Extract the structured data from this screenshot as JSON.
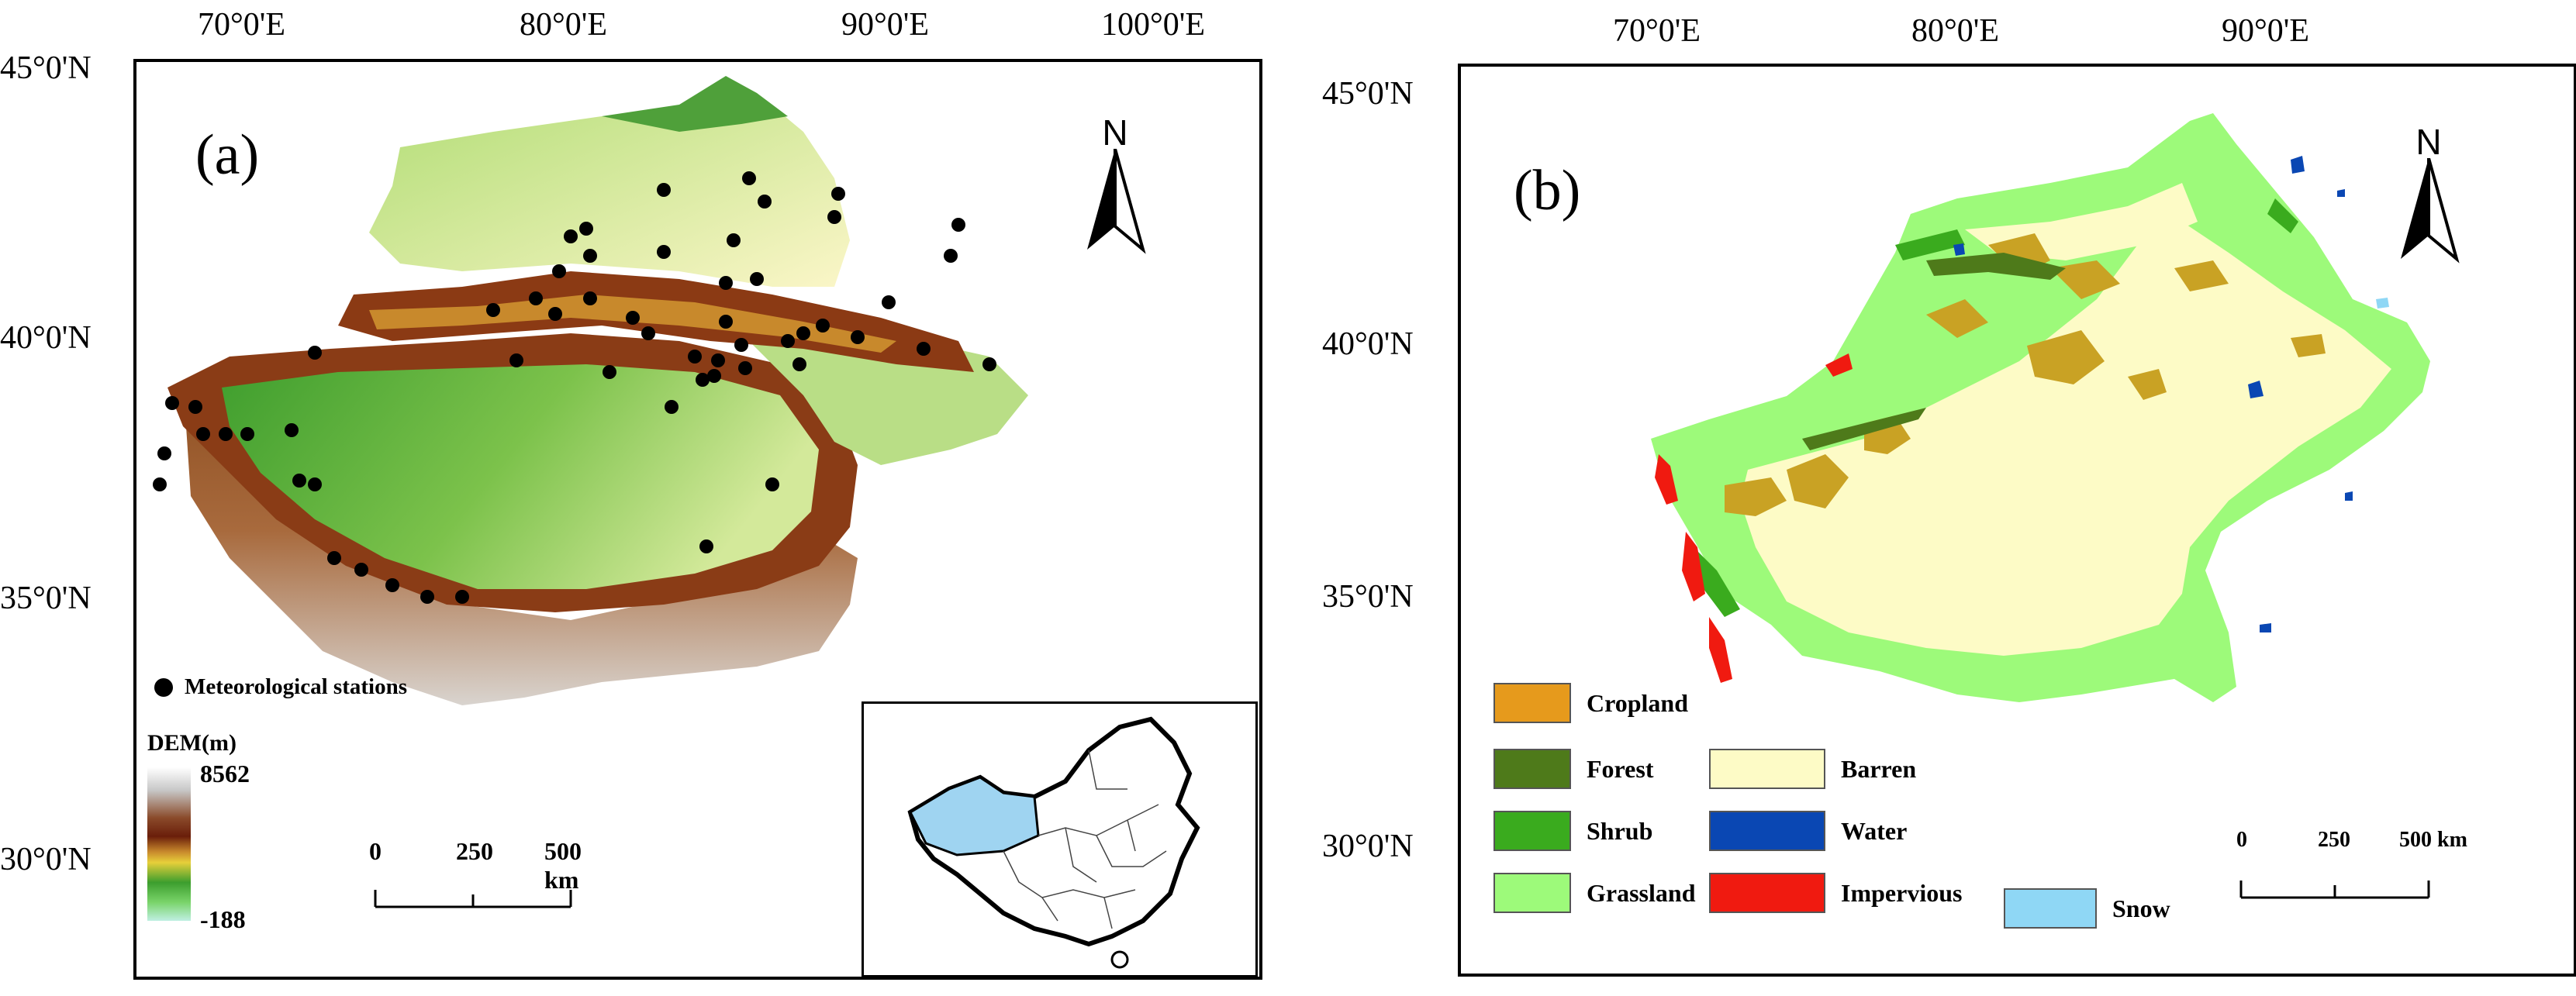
{
  "panel_a": {
    "label": "(a)",
    "top_ticks": [
      "70°0'E",
      "80°0'E",
      "90°0'E",
      "100°0'E"
    ],
    "left_ticks": [
      "45°0'N",
      "40°0'N",
      "35°0'N",
      "30°0'N"
    ],
    "north": "N",
    "stations_legend": "Meteorological stations",
    "dem": {
      "title": "DEM(m)",
      "max": "8562",
      "min": "-188"
    },
    "scale": {
      "t0": "0",
      "t1": "250",
      "t2": "500 km"
    }
  },
  "panel_b": {
    "label": "(b)",
    "top_ticks": [
      "70°0'E",
      "80°0'E",
      "90°0'E"
    ],
    "left_ticks": [
      "45°0'N",
      "40°0'N",
      "35°0'N",
      "30°0'N"
    ],
    "north": "N",
    "scale": {
      "t0": "0",
      "t1": "250",
      "t2": "500 km"
    },
    "legend": [
      {
        "label": "Cropland",
        "color": "#e69a1c"
      },
      {
        "label": "Forest",
        "color": "#4e7a1a"
      },
      {
        "label": "Shrub",
        "color": "#3aab1e"
      },
      {
        "label": "Grassland",
        "color": "#9dfa7a"
      },
      {
        "label": "Barren",
        "color": "#fdfbc6"
      },
      {
        "label": "Water",
        "color": "#0a47b3"
      },
      {
        "label": "Impervious",
        "color": "#f01a10"
      },
      {
        "label": "Snow",
        "color": "#8fd7f5"
      }
    ]
  }
}
